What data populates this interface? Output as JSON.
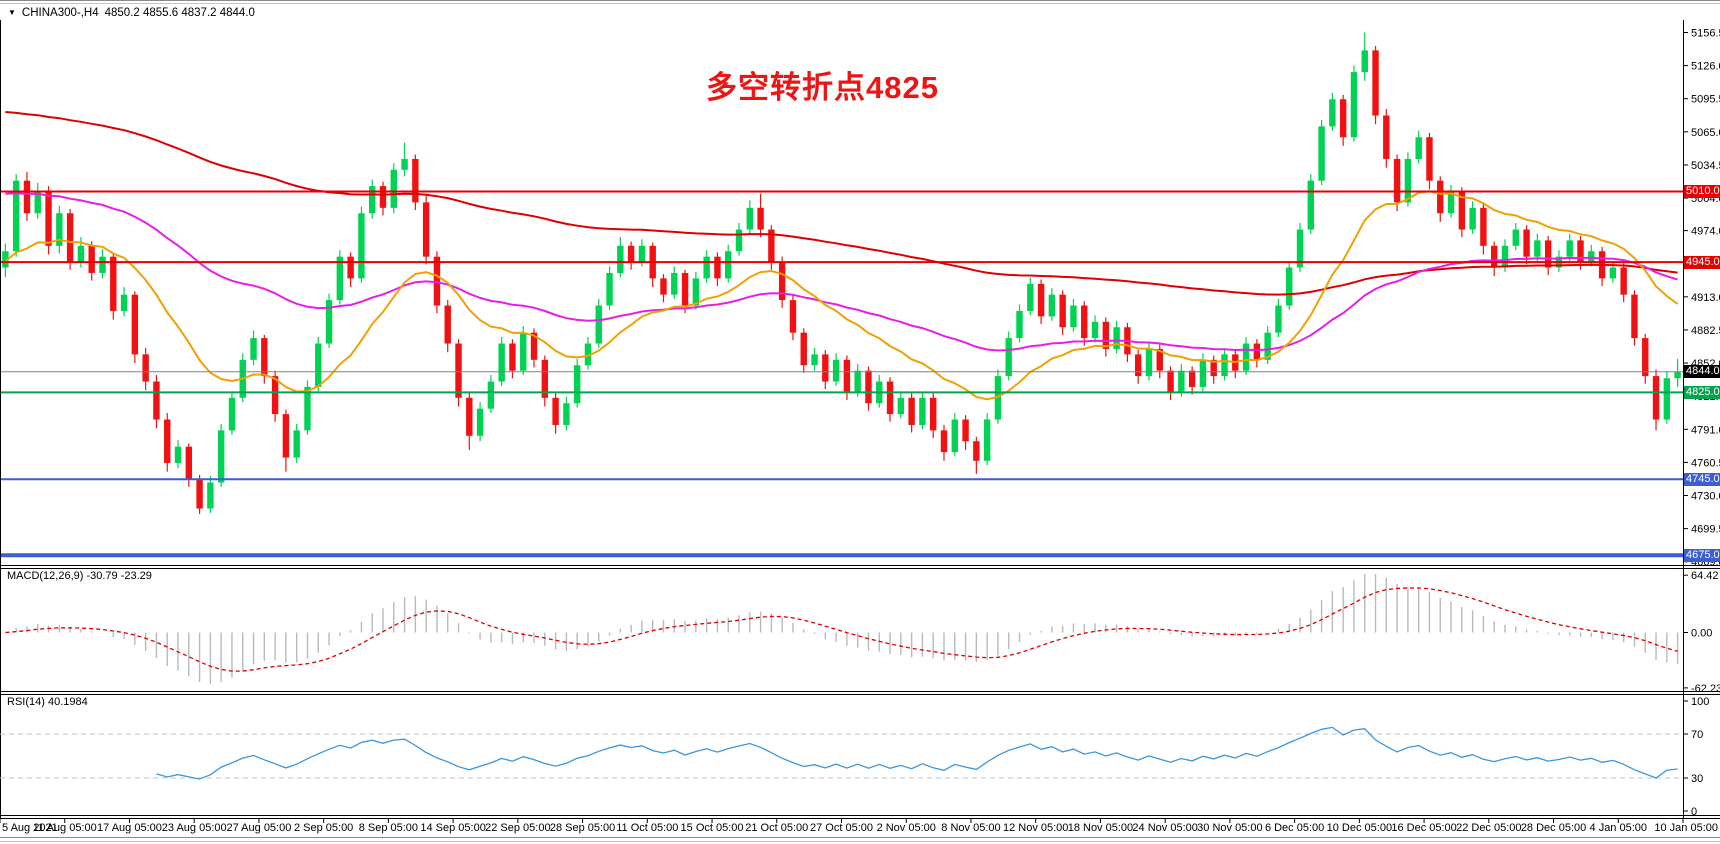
{
  "title": {
    "symbol": "CHINA300-,H4",
    "quote": "4850.2 4855.6 4837.2 4844.0",
    "dropdown_icon": "symbol-dropdown"
  },
  "colors": {
    "up_candle": "#00d253",
    "down_candle": "#f01212",
    "ma_red": "#dd0000",
    "ma_orange": "#efa106",
    "ma_magenta": "#e520e5",
    "macd_hist": "#b9b9b9",
    "macd_signal": "#dd0000",
    "rsi_line": "#3a96dd",
    "annotation_red": "#ee1414",
    "level_red": "#e60000",
    "level_green": "#00a44e",
    "level_blue": "#3c5ed2",
    "bid_line_gray": "#808080"
  },
  "chart_data": {
    "type": "candlestick",
    "symbol": "CHINA300-",
    "timeframe": "H4",
    "title": "CHINA300-,H4  4850.2 4855.6 4837.2 4844.0",
    "ylim": [
      4666,
      5168
    ],
    "price_axis_ticks": [
      5156.5,
      5126.0,
      5095.5,
      5065.0,
      5034.5,
      5004.0,
      4974.0,
      4913.0,
      4882.5,
      4852.0,
      4821.5,
      4791.0,
      4760.5,
      4730.0,
      4699.5,
      4669.0
    ],
    "x_labels": [
      "5 Aug 2021",
      "11 Aug 05:00",
      "17 Aug 05:00",
      "23 Aug 05:00",
      "27 Aug 05:00",
      "2 Sep 05:00",
      "8 Sep 05:00",
      "14 Sep 05:00",
      "22 Sep 05:00",
      "28 Sep 05:00",
      "11 Oct 05:00",
      "15 Oct 05:00",
      "21 Oct 05:00",
      "27 Oct 05:00",
      "2 Nov 05:00",
      "8 Nov 05:00",
      "12 Nov 05:00",
      "18 Nov 05:00",
      "24 Nov 05:00",
      "30 Nov 05:00",
      "6 Dec 05:00",
      "10 Dec 05:00",
      "16 Dec 05:00",
      "22 Dec 05:00",
      "28 Dec 05:00",
      "4 Jan 05:00",
      "10 Jan 05:00"
    ],
    "candles_per_label": 6,
    "ohlc": [
      [
        4940,
        4962,
        4931,
        4955
      ],
      [
        4955,
        5026,
        4950,
        5020
      ],
      [
        5020,
        5028,
        4983,
        4990
      ],
      [
        4990,
        5018,
        4985,
        5010
      ],
      [
        5010,
        5015,
        4952,
        4960
      ],
      [
        4960,
        4997,
        4953,
        4990
      ],
      [
        4990,
        4994,
        4938,
        4945
      ],
      [
        4945,
        4968,
        4940,
        4960
      ],
      [
        4960,
        4964,
        4928,
        4935
      ],
      [
        4935,
        4957,
        4930,
        4950
      ],
      [
        4950,
        4953,
        4892,
        4900
      ],
      [
        4900,
        4922,
        4895,
        4915
      ],
      [
        4915,
        4918,
        4852,
        4860
      ],
      [
        4860,
        4866,
        4827,
        4835
      ],
      [
        4835,
        4841,
        4792,
        4800
      ],
      [
        4800,
        4806,
        4752,
        4760
      ],
      [
        4760,
        4781,
        4755,
        4775
      ],
      [
        4775,
        4778,
        4738,
        4745
      ],
      [
        4745,
        4749,
        4713,
        4718
      ],
      [
        4718,
        4748,
        4714,
        4742
      ],
      [
        4742,
        4796,
        4738,
        4790
      ],
      [
        4790,
        4826,
        4786,
        4820
      ],
      [
        4820,
        4861,
        4816,
        4855
      ],
      [
        4855,
        4882,
        4850,
        4875
      ],
      [
        4875,
        4878,
        4833,
        4840
      ],
      [
        4840,
        4845,
        4798,
        4805
      ],
      [
        4805,
        4809,
        4752,
        4765
      ],
      [
        4765,
        4796,
        4760,
        4790
      ],
      [
        4790,
        4836,
        4786,
        4830
      ],
      [
        4830,
        4876,
        4826,
        4870
      ],
      [
        4870,
        4916,
        4866,
        4910
      ],
      [
        4910,
        4956,
        4906,
        4950
      ],
      [
        4950,
        4954,
        4922,
        4930
      ],
      [
        4930,
        4996,
        4926,
        4990
      ],
      [
        4990,
        5021,
        4985,
        5015
      ],
      [
        5015,
        5019,
        4988,
        4995
      ],
      [
        4995,
        5036,
        4990,
        5030
      ],
      [
        5030,
        5055,
        5024,
        5040
      ],
      [
        5040,
        5044,
        4993,
        5000
      ],
      [
        5000,
        5006,
        4943,
        4950
      ],
      [
        4950,
        4955,
        4898,
        4905
      ],
      [
        4905,
        4910,
        4862,
        4870
      ],
      [
        4870,
        4874,
        4812,
        4820
      ],
      [
        4820,
        4826,
        4772,
        4785
      ],
      [
        4785,
        4816,
        4780,
        4810
      ],
      [
        4810,
        4841,
        4806,
        4835
      ],
      [
        4835,
        4876,
        4831,
        4870
      ],
      [
        4870,
        4874,
        4838,
        4845
      ],
      [
        4845,
        4886,
        4841,
        4880
      ],
      [
        4880,
        4884,
        4848,
        4855
      ],
      [
        4855,
        4859,
        4812,
        4820
      ],
      [
        4820,
        4824,
        4787,
        4795
      ],
      [
        4795,
        4821,
        4790,
        4815
      ],
      [
        4815,
        4856,
        4811,
        4850
      ],
      [
        4850,
        4876,
        4846,
        4870
      ],
      [
        4870,
        4911,
        4866,
        4905
      ],
      [
        4905,
        4941,
        4901,
        4935
      ],
      [
        4935,
        4968,
        4931,
        4960
      ],
      [
        4960,
        4964,
        4938,
        4945
      ],
      [
        4945,
        4966,
        4941,
        4960
      ],
      [
        4960,
        4963,
        4922,
        4930
      ],
      [
        4930,
        4934,
        4908,
        4915
      ],
      [
        4915,
        4941,
        4911,
        4935
      ],
      [
        4935,
        4938,
        4898,
        4905
      ],
      [
        4905,
        4936,
        4901,
        4930
      ],
      [
        4930,
        4956,
        4926,
        4950
      ],
      [
        4950,
        4954,
        4923,
        4930
      ],
      [
        4930,
        4961,
        4926,
        4955
      ],
      [
        4955,
        4981,
        4951,
        4975
      ],
      [
        4975,
        5002,
        4971,
        4995
      ],
      [
        4995,
        5008,
        4968,
        4975
      ],
      [
        4975,
        4979,
        4938,
        4945
      ],
      [
        4945,
        4950,
        4903,
        4910
      ],
      [
        4910,
        4915,
        4873,
        4880
      ],
      [
        4880,
        4884,
        4843,
        4850
      ],
      [
        4850,
        4866,
        4845,
        4860
      ],
      [
        4860,
        4864,
        4828,
        4835
      ],
      [
        4835,
        4861,
        4831,
        4855
      ],
      [
        4855,
        4859,
        4818,
        4825
      ],
      [
        4825,
        4851,
        4821,
        4845
      ],
      [
        4845,
        4849,
        4808,
        4815
      ],
      [
        4815,
        4841,
        4811,
        4835
      ],
      [
        4835,
        4839,
        4798,
        4805
      ],
      [
        4805,
        4826,
        4801,
        4820
      ],
      [
        4820,
        4824,
        4788,
        4795
      ],
      [
        4795,
        4826,
        4791,
        4820
      ],
      [
        4820,
        4824,
        4783,
        4790
      ],
      [
        4790,
        4795,
        4762,
        4770
      ],
      [
        4770,
        4806,
        4766,
        4800
      ],
      [
        4800,
        4804,
        4772,
        4780
      ],
      [
        4780,
        4784,
        4750,
        4762
      ],
      [
        4762,
        4806,
        4758,
        4800
      ],
      [
        4800,
        4846,
        4796,
        4840
      ],
      [
        4840,
        4881,
        4836,
        4875
      ],
      [
        4875,
        4906,
        4871,
        4900
      ],
      [
        4900,
        4931,
        4896,
        4925
      ],
      [
        4925,
        4929,
        4888,
        4895
      ],
      [
        4895,
        4921,
        4891,
        4915
      ],
      [
        4915,
        4919,
        4878,
        4885
      ],
      [
        4885,
        4911,
        4881,
        4905
      ],
      [
        4905,
        4909,
        4868,
        4875
      ],
      [
        4875,
        4896,
        4871,
        4890
      ],
      [
        4890,
        4894,
        4858,
        4865
      ],
      [
        4865,
        4891,
        4861,
        4885
      ],
      [
        4885,
        4889,
        4853,
        4860
      ],
      [
        4860,
        4864,
        4833,
        4840
      ],
      [
        4840,
        4871,
        4836,
        4865
      ],
      [
        4865,
        4869,
        4838,
        4845
      ],
      [
        4845,
        4849,
        4818,
        4825
      ],
      [
        4825,
        4851,
        4821,
        4845
      ],
      [
        4845,
        4849,
        4823,
        4830
      ],
      [
        4830,
        4861,
        4826,
        4855
      ],
      [
        4855,
        4859,
        4833,
        4840
      ],
      [
        4840,
        4866,
        4836,
        4860
      ],
      [
        4860,
        4864,
        4838,
        4845
      ],
      [
        4845,
        4876,
        4841,
        4870
      ],
      [
        4870,
        4874,
        4848,
        4855
      ],
      [
        4855,
        4886,
        4851,
        4880
      ],
      [
        4880,
        4911,
        4876,
        4905
      ],
      [
        4905,
        4946,
        4901,
        4940
      ],
      [
        4940,
        4981,
        4936,
        4975
      ],
      [
        4975,
        5026,
        4971,
        5020
      ],
      [
        5020,
        5076,
        5016,
        5070
      ],
      [
        5070,
        5101,
        5066,
        5095
      ],
      [
        5095,
        5099,
        5052,
        5060
      ],
      [
        5060,
        5126,
        5056,
        5120
      ],
      [
        5120,
        5156.5,
        5112,
        5140
      ],
      [
        5140,
        5144,
        5072,
        5080
      ],
      [
        5080,
        5086,
        5032,
        5040
      ],
      [
        5040,
        5044,
        4992,
        5000
      ],
      [
        5000,
        5046,
        4996,
        5040
      ],
      [
        5040,
        5066,
        5036,
        5060
      ],
      [
        5060,
        5064,
        5012,
        5020
      ],
      [
        5020,
        5024,
        4982,
        4990
      ],
      [
        4990,
        5016,
        4986,
        5010
      ],
      [
        5010,
        5014,
        4968,
        4975
      ],
      [
        4975,
        5001,
        4971,
        4995
      ],
      [
        4995,
        4999,
        4952,
        4960
      ],
      [
        4960,
        4964,
        4932,
        4940
      ],
      [
        4940,
        4966,
        4936,
        4960
      ],
      [
        4960,
        4981,
        4956,
        4975
      ],
      [
        4975,
        4979,
        4943,
        4950
      ],
      [
        4950,
        4971,
        4946,
        4965
      ],
      [
        4965,
        4969,
        4933,
        4940
      ],
      [
        4940,
        4956,
        4936,
        4950
      ],
      [
        4950,
        4971,
        4946,
        4965
      ],
      [
        4965,
        4969,
        4938,
        4945
      ],
      [
        4945,
        4961,
        4941,
        4955
      ],
      [
        4955,
        4959,
        4923,
        4930
      ],
      [
        4930,
        4946,
        4926,
        4940
      ],
      [
        4940,
        4944,
        4908,
        4915
      ],
      [
        4915,
        4919,
        4868,
        4875
      ],
      [
        4875,
        4879,
        4833,
        4840
      ],
      [
        4840,
        4846,
        4790,
        4800
      ],
      [
        4800,
        4844,
        4796,
        4838
      ],
      [
        4838,
        4856,
        4830,
        4844
      ]
    ],
    "moving_averages": [
      {
        "name": "slow-ma",
        "method": "ema",
        "period": 150,
        "seed": 5085,
        "color": "#dd0000",
        "width": 2
      },
      {
        "name": "medium-ma",
        "method": "ema",
        "period": 55,
        "seed": 5010,
        "color": "#e520e5",
        "width": 2
      },
      {
        "name": "fast-ma",
        "method": "ema",
        "period": 18,
        "seed": 4945,
        "color": "#efa106",
        "width": 2
      }
    ],
    "h_lines": [
      {
        "value": 5010.0,
        "label": "5010.0",
        "color": "#e60000",
        "width": 2,
        "tag_bg": "#e60000"
      },
      {
        "value": 4945.0,
        "label": "4945.0",
        "color": "#e60000",
        "width": 2,
        "tag_bg": "#e60000"
      },
      {
        "value": 4844.0,
        "label": "4844.0",
        "color": "#808080",
        "width": 1,
        "tag_bg": "#000000"
      },
      {
        "value": 4825.0,
        "label": "4825.0",
        "color": "#00a44e",
        "width": 2,
        "tag_bg": "#00a44e"
      },
      {
        "value": 4745.0,
        "label": "4745.0",
        "color": "#3c5ed2",
        "width": 2,
        "tag_bg": "#3c5ed2"
      },
      {
        "value": 4675.0,
        "label": "4675.0",
        "color": "#3c5ed2",
        "width": 4,
        "tag_bg": "#3c5ed2"
      }
    ],
    "annotations": [
      {
        "text": "多空转折点4825",
        "color": "#ee1414"
      }
    ],
    "indicators": [
      {
        "type": "MACD",
        "label": "MACD(12,26,9) -30.79 -23.29",
        "params": [
          12,
          26,
          9
        ],
        "current_values": [
          -30.79,
          -23.29
        ],
        "axis_ticks": [
          "64.42",
          "0.00",
          "-62.23"
        ],
        "ylim": [
          -62.23,
          64.42
        ]
      },
      {
        "type": "RSI",
        "label": "RSI(14) 40.1984",
        "period": 14,
        "current_value": 40.1984,
        "levels": [
          70,
          30
        ],
        "axis_ticks": [
          "100",
          "70",
          "30",
          "0"
        ],
        "ylim": [
          0,
          100
        ]
      }
    ]
  }
}
